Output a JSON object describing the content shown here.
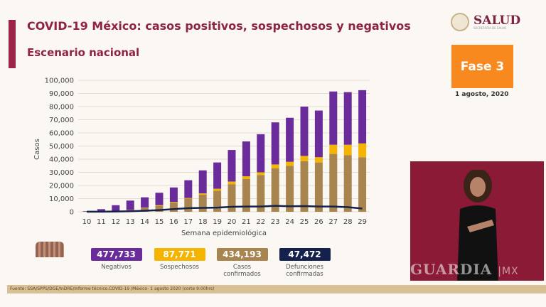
{
  "header": {
    "title": "COVID-19 México: casos positivos, sospechosos y negativos",
    "subtitle": "Escenario nacional"
  },
  "logo": {
    "name": "SALUD",
    "tagline": "SECRETARÍA DE SALUD"
  },
  "phase": {
    "label": "Fase 3",
    "date": "1 agosto, 2020"
  },
  "colors": {
    "negativos": "#6a2c9b",
    "sospechosos": "#f5b400",
    "confirmados": "#a8844e",
    "defunciones": "#14214d"
  },
  "chart_data": {
    "type": "bar",
    "stacked": true,
    "xlabel": "Semana epidemiológica",
    "ylabel": "Casos",
    "ylim": [
      0,
      100000
    ],
    "yticks": [
      "0",
      "10,000",
      "20,000",
      "30,000",
      "40,000",
      "50,000",
      "60,000",
      "70,000",
      "80,000",
      "90,000",
      "100,000"
    ],
    "categories": [
      "10",
      "11",
      "12",
      "13",
      "14",
      "15",
      "16",
      "17",
      "18",
      "19",
      "20",
      "21",
      "22",
      "23",
      "24",
      "25",
      "26",
      "27",
      "28",
      "29"
    ],
    "series": [
      {
        "name": "Casos confirmados",
        "values": [
          300,
          500,
          800,
          1500,
          2800,
          4500,
          7000,
          10000,
          13000,
          16000,
          21000,
          25000,
          28000,
          33000,
          35000,
          38500,
          37500,
          44000,
          43000,
          41500
        ]
      },
      {
        "name": "Sospechosos",
        "values": [
          0,
          0,
          0,
          0,
          300,
          500,
          500,
          500,
          1000,
          1500,
          2000,
          2000,
          2000,
          3000,
          3000,
          4000,
          4000,
          7000,
          8000,
          10500
        ]
      },
      {
        "name": "Negativos",
        "values": [
          200,
          1500,
          4200,
          7000,
          7900,
          9500,
          11000,
          13500,
          17500,
          20000,
          24000,
          26500,
          29000,
          32000,
          33500,
          37500,
          35500,
          40500,
          40000,
          40500
        ]
      },
      {
        "name": "Defunciones confirmadas",
        "type": "line",
        "values": [
          50,
          100,
          200,
          400,
          800,
          1300,
          2000,
          2800,
          3000,
          3200,
          3800,
          4000,
          4000,
          4500,
          4200,
          4300,
          4000,
          4000,
          3500,
          2500
        ]
      }
    ]
  },
  "stats": [
    {
      "value": "477,733",
      "label": "Negativos",
      "color": "#6a2c9b"
    },
    {
      "value": "87,771",
      "label": "Sospechosos",
      "color": "#f5b400"
    },
    {
      "value": "434,193",
      "label": "Casos confirmados",
      "color": "#a8844e"
    },
    {
      "value": "47,472",
      "label": "Defunciones confirmadas",
      "color": "#14214d"
    }
  ],
  "footer": "Fuente: SSA/SPPS/DGE/InDRE/Informe técnico.COVID-19 /México- 1 agosto 2020 (corte 9:00hrs)",
  "watermark": {
    "brand": "GUARDIA",
    "suffix": "MX"
  }
}
